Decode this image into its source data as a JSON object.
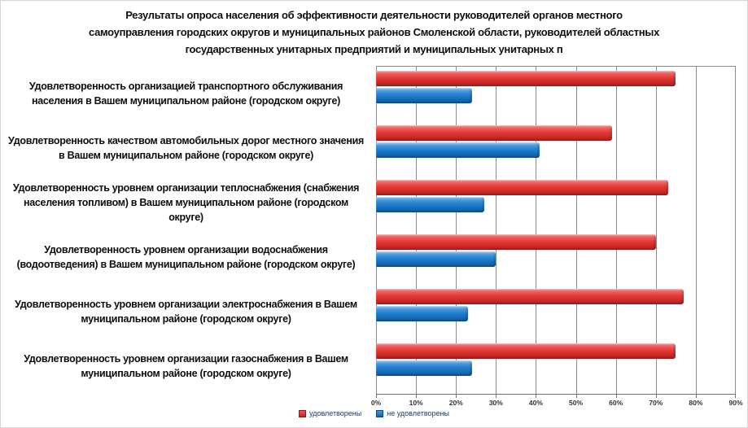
{
  "title": {
    "full": "Результаты опроса населения об эффективности деятельности руководителей органов местного самоуправления городских округов и муниципальных районов Смоленской области, руководителей областных государственных унитарных предприятий и муниципальных унитарных п",
    "lines": [
      "Результаты опроса населения об эффективности деятельности руководителей органов местного",
      "самоуправления городских округов и муниципальных районов Смоленской области, руководителей областных",
      "государственных унитарных предприятий и муниципальных унитарных п"
    ]
  },
  "legend": {
    "satisfied": "удовлетворены",
    "dissatisfied": "не удовлетворены"
  },
  "colors": {
    "satisfied": "#e23c3a",
    "dissatisfied": "#2381d0",
    "gridline": "#8c8c8c"
  },
  "chart_data": {
    "type": "bar",
    "orientation": "horizontal",
    "title": "Результаты опроса населения об эффективности деятельности руководителей органов местного самоуправления городских округов и муниципальных районов Смоленской области, руководителей областных государственных унитарных предприятий и муниципальных унитарных п",
    "categories": [
      "Удовлетворенность организацией транспортного обслуживания населения в Вашем муниципальном районе (городском округе)",
      "Удовлетворенность качеством автомобильных дорог местного значения в Вашем муниципальном районе (городском округе)",
      "Удовлетворенность уровнем организации теплоснабжения (снабжения населения топливом) в Вашем муниципальном районе (городском округе)",
      "Удовлетворенность уровнем организации водоснабжения (водоотведения) в Вашем муниципальном районе (городском округе)",
      "Удовлетворенность уровнем организации электроснабжения в Вашем муниципальном районе (городском округе)",
      "Удовлетворенность уровнем организации газоснабжения в Вашем муниципальном районе (городском округе)"
    ],
    "series": [
      {
        "name": "удовлетворены",
        "color": "#e23c3a",
        "values": [
          75,
          59,
          73,
          70,
          77,
          75
        ]
      },
      {
        "name": "не удовлетворены",
        "color": "#2381d0",
        "values": [
          24,
          41,
          27,
          30,
          23,
          24
        ]
      }
    ],
    "xlim": [
      0,
      90
    ],
    "xticks": [
      "0%",
      "10%",
      "20%",
      "30%",
      "40%",
      "50%",
      "60%",
      "70%",
      "80%",
      "90%"
    ],
    "grid": "vertical",
    "legend_position": "bottom"
  }
}
